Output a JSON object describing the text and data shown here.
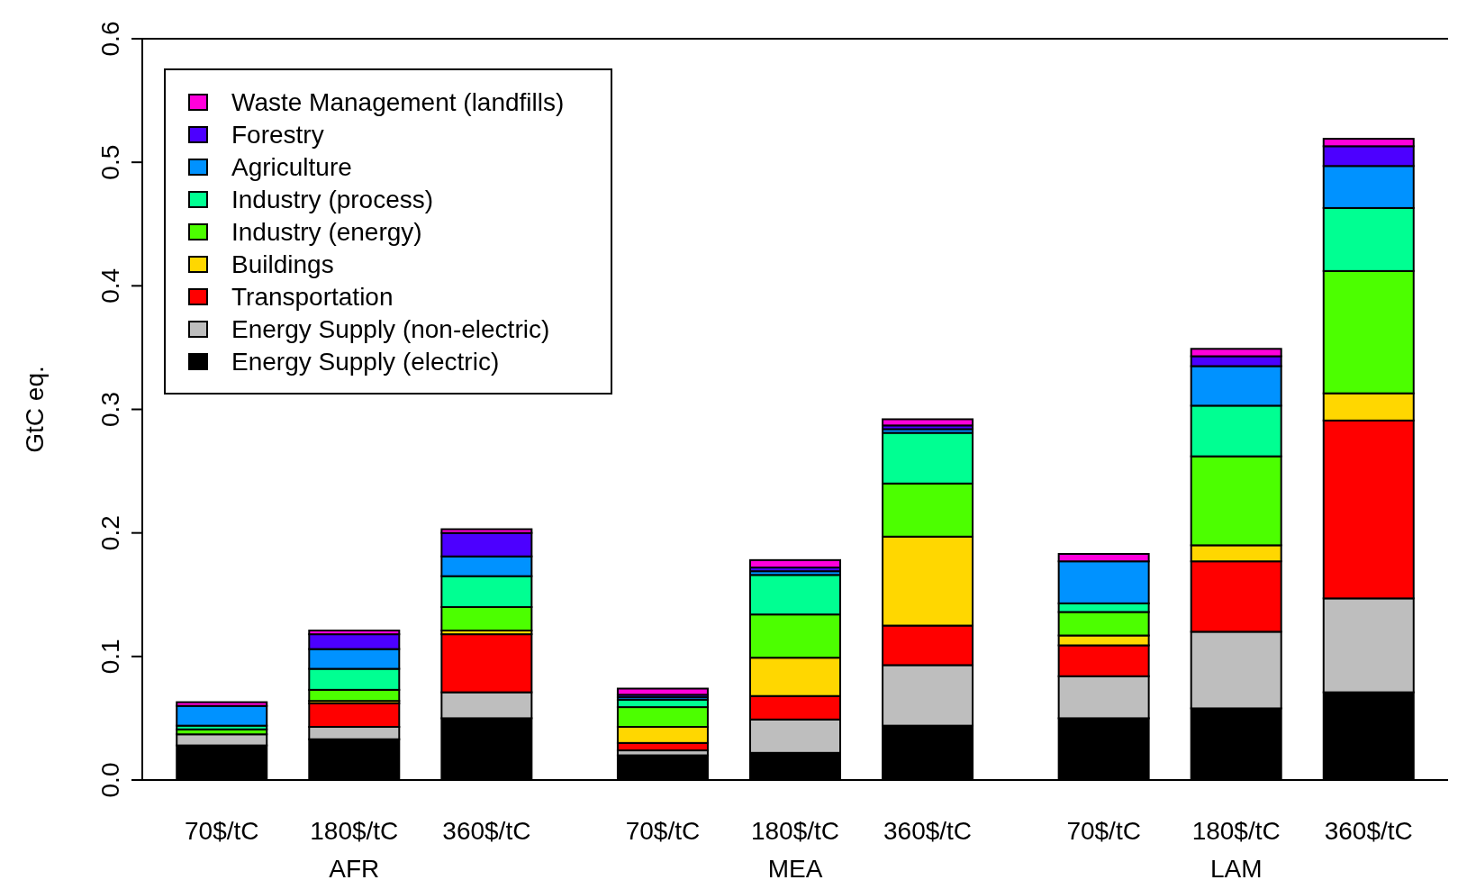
{
  "chart_data": {
    "type": "bar",
    "stacked": true,
    "ylabel": "GtC eq.",
    "categories": [
      "70$/tC",
      "180$/tC",
      "360$/tC",
      "70$/tC",
      "180$/tC",
      "360$/tC",
      "70$/tC",
      "180$/tC",
      "360$/tC"
    ],
    "annotations": [
      "AFR",
      "MEA",
      "LAM"
    ],
    "series": [
      {
        "name": "Energy Supply (electric)",
        "color": "#000000",
        "values": [
          0.028,
          0.033,
          0.05,
          0.02,
          0.022,
          0.044,
          0.05,
          0.058,
          0.071
        ]
      },
      {
        "name": "Energy Supply (non-electric)",
        "color": "#bebebe",
        "values": [
          0.009,
          0.01,
          0.021,
          0.004,
          0.027,
          0.049,
          0.034,
          0.062,
          0.076
        ]
      },
      {
        "name": "Transportation",
        "color": "#ff0000",
        "values": [
          null,
          0.019,
          0.047,
          0.006,
          0.019,
          0.032,
          0.025,
          0.057,
          0.144
        ]
      },
      {
        "name": "Buildings",
        "color": "#ffd700",
        "values": [
          null,
          0.002,
          0.003,
          0.013,
          0.031,
          0.072,
          0.008,
          0.013,
          0.022
        ]
      },
      {
        "name": "Industry (energy)",
        "color": "#4cff00",
        "values": [
          0.004,
          0.009,
          0.019,
          0.016,
          0.035,
          0.043,
          0.019,
          0.072,
          0.099
        ]
      },
      {
        "name": "Industry (process)",
        "color": "#00ff92",
        "values": [
          0.003,
          0.017,
          0.025,
          0.006,
          0.032,
          0.041,
          0.007,
          0.041,
          0.051
        ]
      },
      {
        "name": "Agriculture",
        "color": "#0092ff",
        "values": [
          0.016,
          0.016,
          0.016,
          0.002,
          0.003,
          0.003,
          0.034,
          0.032,
          0.034
        ]
      },
      {
        "name": "Forestry",
        "color": "#4c00ff",
        "values": [
          null,
          0.012,
          0.019,
          0.002,
          0.003,
          0.003,
          null,
          0.008,
          0.016
        ]
      },
      {
        "name": "Waste Management (landfills)",
        "color": "#ff00db",
        "values": [
          0.003,
          0.003,
          0.003,
          0.005,
          0.006,
          0.005,
          0.006,
          0.006,
          0.006
        ]
      }
    ],
    "ylim": [
      0,
      0.6
    ],
    "yticks": [
      {
        "value": 0,
        "label": "0.0"
      },
      0.1,
      0.2,
      0.3,
      0.4,
      0.5,
      0.6
    ],
    "legend": "top left"
  }
}
